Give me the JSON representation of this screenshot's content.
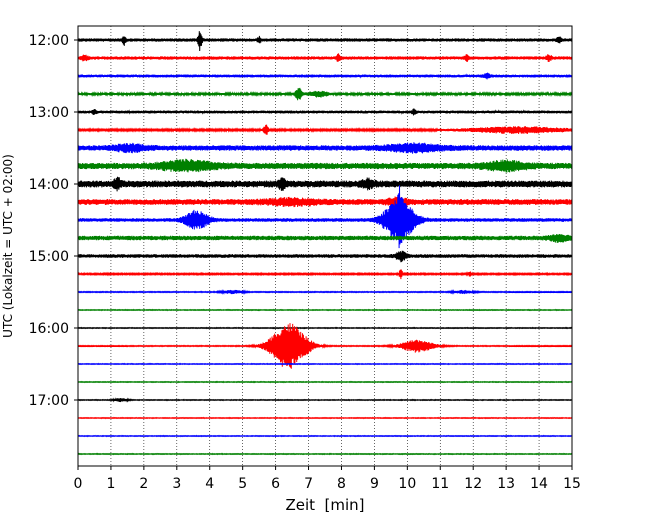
{
  "chart_data": {
    "type": "line",
    "title": "",
    "xlabel": "Zeit  [min]",
    "ylabel": "UTC (Lokalzeit = UTC + 02:00)",
    "xlim": [
      0,
      15
    ],
    "x_ticks": [
      "0",
      "1",
      "2",
      "3",
      "4",
      "5",
      "6",
      "7",
      "8",
      "9",
      "10",
      "11",
      "12",
      "13",
      "14",
      "15"
    ],
    "y_tick_labels": [
      "12:00",
      "13:00",
      "14:00",
      "15:00",
      "16:00",
      "17:00"
    ],
    "grid": "vertical dotted",
    "colors": [
      "#000000",
      "#ff0000",
      "#0000ff",
      "#008000"
    ],
    "series": [
      {
        "start": "12:00",
        "color": "#000000",
        "noise": 0.18,
        "events": [
          {
            "t": 1.4,
            "amp": 0.5,
            "dur": 0.05
          },
          {
            "t": 3.7,
            "amp": 1.1,
            "dur": 0.06
          },
          {
            "t": 5.5,
            "amp": 0.3,
            "dur": 0.05
          },
          {
            "t": 14.6,
            "amp": 0.35,
            "dur": 0.06
          }
        ]
      },
      {
        "start": "12:15",
        "color": "#ff0000",
        "noise": 0.18,
        "events": [
          {
            "t": 0.2,
            "amp": 0.25,
            "dur": 0.1
          },
          {
            "t": 7.9,
            "amp": 0.35,
            "dur": 0.06
          },
          {
            "t": 11.8,
            "amp": 0.3,
            "dur": 0.06
          },
          {
            "t": 14.3,
            "amp": 0.3,
            "dur": 0.08
          }
        ]
      },
      {
        "start": "12:30",
        "color": "#0000ff",
        "noise": 0.16,
        "events": [
          {
            "t": 12.4,
            "amp": 0.25,
            "dur": 0.1
          }
        ]
      },
      {
        "start": "12:45",
        "color": "#008000",
        "noise": 0.12,
        "events": [
          {
            "t": 6.7,
            "amp": 0.7,
            "dur": 0.1
          },
          {
            "t": 7.3,
            "amp": 0.3,
            "dur": 0.3
          }
        ]
      },
      {
        "start": "13:00",
        "color": "#000000",
        "noise": 0.16,
        "events": [
          {
            "t": 0.5,
            "amp": 0.3,
            "dur": 0.05
          },
          {
            "t": 10.2,
            "amp": 0.25,
            "dur": 0.06
          }
        ]
      },
      {
        "start": "13:15",
        "color": "#ff0000",
        "noise": 0.1,
        "events": [
          {
            "t": 5.7,
            "amp": 0.6,
            "dur": 0.08
          },
          {
            "t": 13.4,
            "amp": 0.35,
            "dur": 1.5
          }
        ]
      },
      {
        "start": "13:30",
        "color": "#0000ff",
        "noise": 0.3,
        "events": [
          {
            "t": 1.6,
            "amp": 0.3,
            "dur": 0.5
          },
          {
            "t": 10.2,
            "amp": 0.35,
            "dur": 0.8
          }
        ]
      },
      {
        "start": "13:45",
        "color": "#008000",
        "noise": 0.35,
        "events": [
          {
            "t": 3.3,
            "amp": 0.45,
            "dur": 0.8
          },
          {
            "t": 13.0,
            "amp": 0.4,
            "dur": 0.6
          }
        ]
      },
      {
        "start": "14:00",
        "color": "#000000",
        "noise": 0.38,
        "events": [
          {
            "t": 1.2,
            "amp": 0.5,
            "dur": 0.1
          },
          {
            "t": 6.2,
            "amp": 0.5,
            "dur": 0.1
          },
          {
            "t": 8.8,
            "amp": 0.35,
            "dur": 0.2
          }
        ]
      },
      {
        "start": "14:15",
        "color": "#ff0000",
        "noise": 0.32,
        "events": [
          {
            "t": 6.5,
            "amp": 0.25,
            "dur": 0.8
          },
          {
            "t": 9.7,
            "amp": 0.35,
            "dur": 0.3
          }
        ]
      },
      {
        "start": "14:30",
        "color": "#0000ff",
        "noise": 0.2,
        "events": [
          {
            "t": 3.6,
            "amp": 1.0,
            "dur": 0.35
          },
          {
            "t": 9.75,
            "amp": 2.4,
            "dur": 0.45
          },
          {
            "t": 9.78,
            "amp": 1.8,
            "dur": 0.06
          }
        ]
      },
      {
        "start": "14:45",
        "color": "#008000",
        "noise": 0.25,
        "events": [
          {
            "t": 14.6,
            "amp": 0.3,
            "dur": 0.3
          }
        ]
      },
      {
        "start": "15:00",
        "color": "#000000",
        "noise": 0.2,
        "events": [
          {
            "t": 9.8,
            "amp": 0.5,
            "dur": 0.15
          }
        ]
      },
      {
        "start": "15:15",
        "color": "#ff0000",
        "noise": 0.08,
        "events": [
          {
            "t": 9.8,
            "amp": 0.6,
            "dur": 0.05
          },
          {
            "t": 11.9,
            "amp": 0.3,
            "dur": 0.05
          }
        ]
      },
      {
        "start": "15:30",
        "color": "#0000ff",
        "noise": 0.05,
        "events": [
          {
            "t": 4.7,
            "amp": 0.2,
            "dur": 0.3
          },
          {
            "t": 11.7,
            "amp": 0.18,
            "dur": 0.3
          }
        ]
      },
      {
        "start": "15:45",
        "color": "#008000",
        "noise": 0.04,
        "events": []
      },
      {
        "start": "16:00",
        "color": "#000000",
        "noise": 0.04,
        "events": []
      },
      {
        "start": "16:15",
        "color": "#ff0000",
        "noise": 0.05,
        "events": [
          {
            "t": 6.4,
            "amp": 2.6,
            "dur": 0.55
          },
          {
            "t": 10.3,
            "amp": 0.7,
            "dur": 0.5
          }
        ]
      },
      {
        "start": "16:30",
        "color": "#0000ff",
        "noise": 0.04,
        "events": []
      },
      {
        "start": "16:45",
        "color": "#008000",
        "noise": 0.04,
        "events": []
      },
      {
        "start": "17:00",
        "color": "#000000",
        "noise": 0.04,
        "events": [
          {
            "t": 1.3,
            "amp": 0.2,
            "dur": 0.2
          }
        ]
      },
      {
        "start": "17:15",
        "color": "#ff0000",
        "noise": 0.04,
        "events": []
      },
      {
        "start": "17:30",
        "color": "#0000ff",
        "noise": 0.04,
        "events": []
      },
      {
        "start": "17:45",
        "color": "#008000",
        "noise": 0.04,
        "events": []
      }
    ]
  }
}
